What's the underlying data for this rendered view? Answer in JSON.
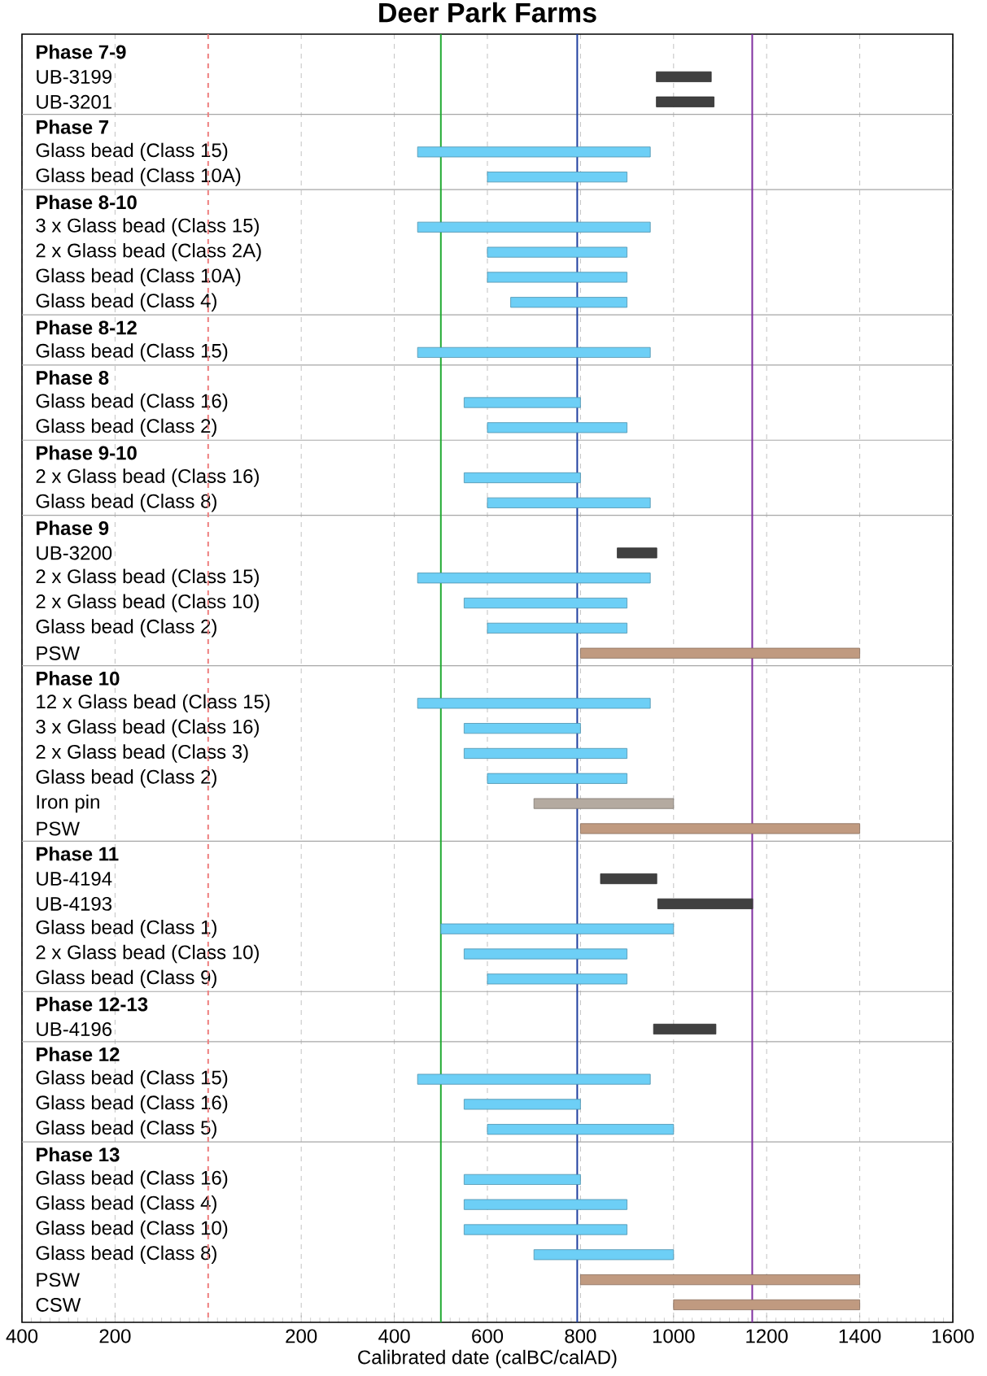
{
  "chart_data": {
    "type": "bar",
    "orientation": "horizontal",
    "title": "Deer Park Farms",
    "xlabel": "Calibrated date (calBC/calAD)",
    "categories": [
      "Phase 7-9",
      "UB-3199",
      "UB-3201",
      "Phase 7",
      "Glass bead (Class 15)",
      "Glass bead (Class 10A)",
      "Phase 8-10",
      "3 x Glass bead (Class 15)",
      "2 x Glass bead (Class 2A)",
      "Glass bead (Class 10A)",
      "Glass bead (Class 4)",
      "Phase 8-12",
      "Glass bead (Class 15)",
      "Phase 8",
      "Glass bead (Class 16)",
      "Glass bead (Class 2)",
      "Phase 9-10",
      "2 x Glass bead (Class 16)",
      "Glass bead (Class 8)",
      "Phase 9",
      "UB-3200",
      "2 x Glass bead (Class 15)",
      "2 x Glass bead (Class 10)",
      "Glass bead (Class 2)",
      "PSW",
      "Phase 10",
      "12 x Glass bead (Class 15)",
      "3 x Glass bead (Class 16)",
      "2 x Glass bead (Class 3)",
      "Glass bead (Class 2)",
      "Iron pin",
      "PSW",
      "Phase 11",
      "UB-4194",
      "UB-4193",
      "Glass bead (Class 1)",
      "2 x Glass bead (Class 10)",
      "Glass bead (Class 9)",
      "Phase 12-13",
      "UB-4196",
      "Phase 12",
      "Glass bead (Class 15)",
      "Glass bead (Class 16)",
      "Glass bead (Class 5)",
      "Phase 13",
      "Glass bead (Class 16)",
      "Glass bead (Class 4)",
      "Glass bead (Class 10)",
      "Glass bead (Class 8)",
      "PSW",
      "CSW"
    ],
    "base": [
      null,
      963,
      963,
      null,
      450,
      600,
      null,
      450,
      600,
      600,
      650,
      null,
      450,
      null,
      550,
      600,
      null,
      550,
      600,
      null,
      879,
      450,
      550,
      600,
      800,
      null,
      450,
      550,
      550,
      600,
      700,
      800,
      null,
      843,
      966,
      500,
      550,
      600,
      null,
      957,
      null,
      450,
      550,
      600,
      null,
      550,
      550,
      550,
      700,
      800,
      1000
    ],
    "values": [
      null,
      118,
      124,
      null,
      500,
      300,
      null,
      500,
      300,
      300,
      250,
      null,
      500,
      null,
      250,
      300,
      null,
      250,
      350,
      null,
      85,
      500,
      350,
      300,
      600,
      null,
      500,
      250,
      350,
      300,
      300,
      600,
      null,
      121,
      204,
      500,
      350,
      300,
      null,
      134,
      null,
      500,
      250,
      400,
      null,
      250,
      350,
      350,
      300,
      600,
      400
    ],
    "colors": [
      null,
      "#404040",
      "#404040",
      null,
      "#6dcff6",
      "#6dcff6",
      null,
      "#6dcff6",
      "#6dcff6",
      "#6dcff6",
      "#6dcff6",
      null,
      "#6dcff6",
      null,
      "#6dcff6",
      "#6dcff6",
      null,
      "#6dcff6",
      "#6dcff6",
      null,
      "#404040",
      "#6dcff6",
      "#6dcff6",
      "#6dcff6",
      "#c09a80",
      null,
      "#6dcff6",
      "#6dcff6",
      "#6dcff6",
      "#6dcff6",
      "#b4aaa0",
      "#c09a80",
      null,
      "#404040",
      "#404040",
      "#6dcff6",
      "#6dcff6",
      "#6dcff6",
      null,
      "#404040",
      null,
      "#6dcff6",
      "#6dcff6",
      "#6dcff6",
      null,
      "#6dcff6",
      "#6dcff6",
      "#6dcff6",
      "#6dcff6",
      "#c09a80",
      "#c09a80"
    ],
    "xlim": [
      -400,
      1600
    ],
    "xticks": [
      {
        "value": -400,
        "label": "400"
      },
      {
        "value": -200,
        "label": "200"
      },
      {
        "value": 0,
        "label": null
      },
      200,
      400,
      600,
      800,
      1000,
      1200,
      1400,
      1600
    ],
    "grid": "x",
    "ref_lines": [
      {
        "axis": "x",
        "value": 0,
        "color": "#f08080",
        "line_style": "dashed"
      },
      {
        "axis": "x",
        "value": 500,
        "color": "#22aa33"
      },
      {
        "axis": "x",
        "value": 793,
        "color": "#2040a0"
      },
      {
        "axis": "x",
        "value": 1169,
        "color": "#8030a0"
      }
    ]
  }
}
